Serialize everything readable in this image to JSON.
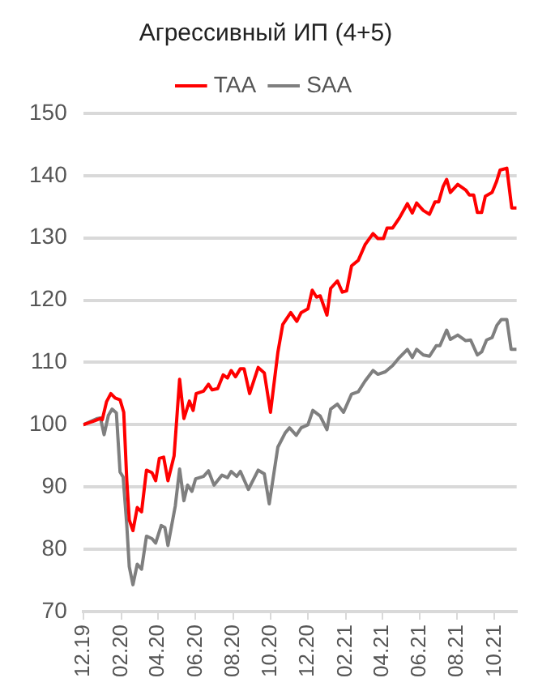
{
  "chart_data": {
    "type": "line",
    "title": "Агрессивный ИП (4+5)",
    "legend": "top",
    "grid": "y",
    "marker": "none",
    "line_style": "solid",
    "xlim": [
      "2019-12-01",
      "2021-11-06"
    ],
    "xticks": [
      {
        "value": "2019-12-01",
        "label": "12.19"
      },
      {
        "value": "2020-02-01",
        "label": "02.20"
      },
      {
        "value": "2020-04-01",
        "label": "04.20"
      },
      {
        "value": "2020-06-01",
        "label": "06.20"
      },
      {
        "value": "2020-08-01",
        "label": "08.20"
      },
      {
        "value": "2020-10-01",
        "label": "10.20"
      },
      {
        "value": "2020-12-01",
        "label": "12.20"
      },
      {
        "value": "2021-02-01",
        "label": "02.21"
      },
      {
        "value": "2021-04-01",
        "label": "04.21"
      },
      {
        "value": "2021-06-01",
        "label": "06.21"
      },
      {
        "value": "2021-08-01",
        "label": "08.21"
      },
      {
        "value": "2021-10-01",
        "label": "10.21"
      }
    ],
    "ylim": [
      70,
      150
    ],
    "yticks": [
      70,
      80,
      90,
      100,
      110,
      120,
      130,
      140,
      150
    ],
    "series": [
      {
        "name": "TAA",
        "color": "#ff0000",
        "x": [
          "2019-12-01",
          "2019-12-19",
          "2019-12-29",
          "2020-01-01",
          "2020-01-08",
          "2020-01-15",
          "2020-01-22",
          "2020-01-30",
          "2020-02-05",
          "2020-02-10",
          "2020-02-14",
          "2020-02-20",
          "2020-02-27",
          "2020-03-05",
          "2020-03-13",
          "2020-03-22",
          "2020-03-28",
          "2020-04-03",
          "2020-04-10",
          "2020-04-17",
          "2020-04-27",
          "2020-05-06",
          "2020-05-13",
          "2020-05-22",
          "2020-05-28",
          "2020-06-02",
          "2020-06-14",
          "2020-06-22",
          "2020-06-28",
          "2020-07-07",
          "2020-07-16",
          "2020-07-23",
          "2020-07-29",
          "2020-08-05",
          "2020-08-13",
          "2020-08-19",
          "2020-08-28",
          "2020-09-11",
          "2020-09-21",
          "2020-10-01",
          "2020-10-13",
          "2020-10-21",
          "2020-11-03",
          "2020-11-13",
          "2020-11-20",
          "2020-12-01",
          "2020-12-08",
          "2020-12-15",
          "2020-12-21",
          "2021-01-01",
          "2021-01-07",
          "2021-01-18",
          "2021-01-26",
          "2021-02-02",
          "2021-02-10",
          "2021-02-21",
          "2021-03-04",
          "2021-03-17",
          "2021-03-25",
          "2021-04-03",
          "2021-04-09",
          "2021-04-18",
          "2021-04-29",
          "2021-05-12",
          "2021-05-20",
          "2021-05-27",
          "2021-06-07",
          "2021-06-17",
          "2021-06-26",
          "2021-07-02",
          "2021-07-09",
          "2021-07-15",
          "2021-07-21",
          "2021-08-02",
          "2021-08-15",
          "2021-08-21",
          "2021-08-28",
          "2021-09-03",
          "2021-09-10",
          "2021-09-16",
          "2021-09-27",
          "2021-10-04",
          "2021-10-10",
          "2021-10-21",
          "2021-10-29",
          "2021-11-06"
        ],
        "values": [
          100,
          100.6,
          101,
          100.8,
          103.7,
          105,
          104.3,
          104,
          102,
          91,
          84.7,
          83,
          86.7,
          86,
          92.7,
          92.3,
          91,
          94.6,
          94.8,
          91,
          95,
          107.3,
          101,
          103.8,
          102.3,
          105,
          105.4,
          106.5,
          105.6,
          105.8,
          108,
          107.5,
          108.7,
          107.7,
          109,
          109,
          105,
          109.2,
          108.3,
          102,
          111.6,
          116.1,
          118,
          116.6,
          118,
          118.6,
          121.6,
          120.5,
          120.7,
          117.6,
          121.9,
          123.1,
          121.3,
          121.5,
          125.5,
          126.4,
          128.9,
          130.7,
          129.9,
          129.9,
          131.6,
          131.6,
          133.2,
          135.5,
          134,
          135.6,
          134.4,
          133.8,
          135.8,
          135.8,
          138.2,
          139.4,
          137.3,
          138.6,
          137.7,
          136.9,
          136.9,
          134.1,
          134.1,
          136.7,
          137.3,
          139,
          140.9,
          141.2,
          134.8,
          134.8
        ]
      },
      {
        "name": "SAA",
        "color": "#7f7f7f",
        "x": [
          "2019-12-01",
          "2019-12-24",
          "2019-12-29",
          "2020-01-04",
          "2020-01-11",
          "2020-01-17",
          "2020-01-24",
          "2020-01-30",
          "2020-02-04",
          "2020-02-10",
          "2020-02-14",
          "2020-02-20",
          "2020-02-27",
          "2020-03-05",
          "2020-03-13",
          "2020-03-22",
          "2020-03-28",
          "2020-04-06",
          "2020-04-12",
          "2020-04-17",
          "2020-04-29",
          "2020-05-06",
          "2020-05-13",
          "2020-05-19",
          "2020-05-26",
          "2020-06-01",
          "2020-06-14",
          "2020-06-22",
          "2020-07-01",
          "2020-07-14",
          "2020-07-23",
          "2020-07-29",
          "2020-08-07",
          "2020-08-13",
          "2020-08-26",
          "2020-09-11",
          "2020-09-21",
          "2020-09-29",
          "2020-10-13",
          "2020-10-25",
          "2020-11-01",
          "2020-11-12",
          "2020-11-20",
          "2020-12-01",
          "2020-12-09",
          "2020-12-21",
          "2021-01-01",
          "2021-01-07",
          "2021-01-18",
          "2021-01-28",
          "2021-02-10",
          "2021-02-21",
          "2021-03-04",
          "2021-03-17",
          "2021-03-25",
          "2021-04-06",
          "2021-04-18",
          "2021-04-29",
          "2021-05-12",
          "2021-05-20",
          "2021-05-27",
          "2021-06-07",
          "2021-06-17",
          "2021-06-28",
          "2021-07-04",
          "2021-07-15",
          "2021-07-21",
          "2021-08-02",
          "2021-08-15",
          "2021-08-23",
          "2021-09-03",
          "2021-09-10",
          "2021-09-18",
          "2021-09-27",
          "2021-10-05",
          "2021-10-12",
          "2021-10-21",
          "2021-10-28",
          "2021-11-06"
        ],
        "values": [
          100,
          101,
          101.1,
          98.4,
          101.5,
          102.5,
          101.9,
          92.4,
          91.6,
          83.8,
          77.2,
          74.3,
          77.6,
          76.8,
          82.1,
          81.7,
          81,
          83.8,
          83.5,
          80.6,
          87,
          92.9,
          87.8,
          90.3,
          89.3,
          91.3,
          91.7,
          92.6,
          90.3,
          91.9,
          91.5,
          92.5,
          91.7,
          92.5,
          89.6,
          92.7,
          92.1,
          87.3,
          96.4,
          98.7,
          99.5,
          98.3,
          99.5,
          100,
          102.3,
          101.4,
          99.2,
          102.5,
          103.3,
          102,
          104.9,
          105.3,
          107,
          108.7,
          108.1,
          108.5,
          109.5,
          110.8,
          112.1,
          110.8,
          112.1,
          111.2,
          111,
          112.7,
          112.7,
          115.2,
          113.7,
          114.4,
          113.5,
          113.6,
          111.2,
          111.7,
          113.6,
          114,
          116,
          116.9,
          116.9,
          112.1,
          112.1
        ]
      }
    ]
  }
}
